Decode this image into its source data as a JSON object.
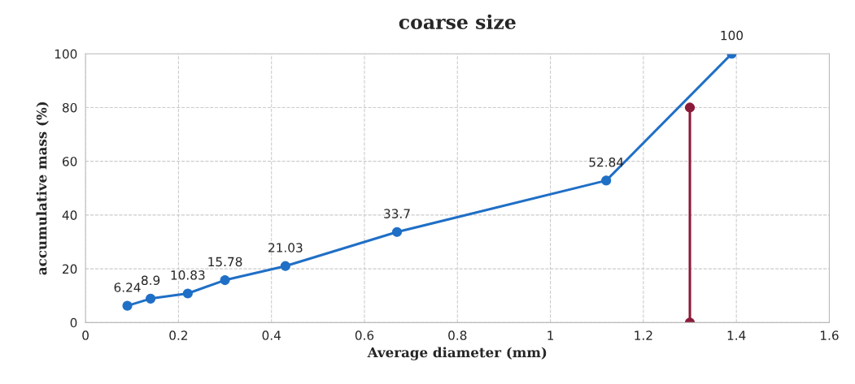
{
  "chart_data": {
    "type": "line",
    "title": "coarse size",
    "xlabel": "Average diameter (mm)",
    "ylabel": "accumulative mass (%)",
    "xlim": [
      0,
      1.6
    ],
    "xticks": [
      0,
      0.2,
      0.4,
      0.6,
      0.8,
      1,
      1.2,
      1.4,
      1.6
    ],
    "ylim": [
      0,
      100
    ],
    "yticks": [
      0,
      20,
      40,
      60,
      80,
      100
    ],
    "grid": true,
    "marker": "circle",
    "line_style": "solid",
    "series": [
      {
        "color": "#1f6fc6",
        "x": [
          0.09,
          0.14,
          0.22,
          0.3,
          0.43,
          0.67,
          1.12,
          1.39
        ],
        "values": [
          6.24,
          8.9,
          10.83,
          15.78,
          21.03,
          33.7,
          52.84,
          100
        ],
        "value_labels": [
          "6.24",
          "8.9",
          "10.83",
          "15.78",
          "21.03",
          "33.7",
          "52.84",
          "100"
        ]
      },
      {
        "color": "#8b1a3a",
        "x": [
          1.3,
          1.3
        ],
        "values": [
          80,
          0
        ]
      }
    ]
  }
}
